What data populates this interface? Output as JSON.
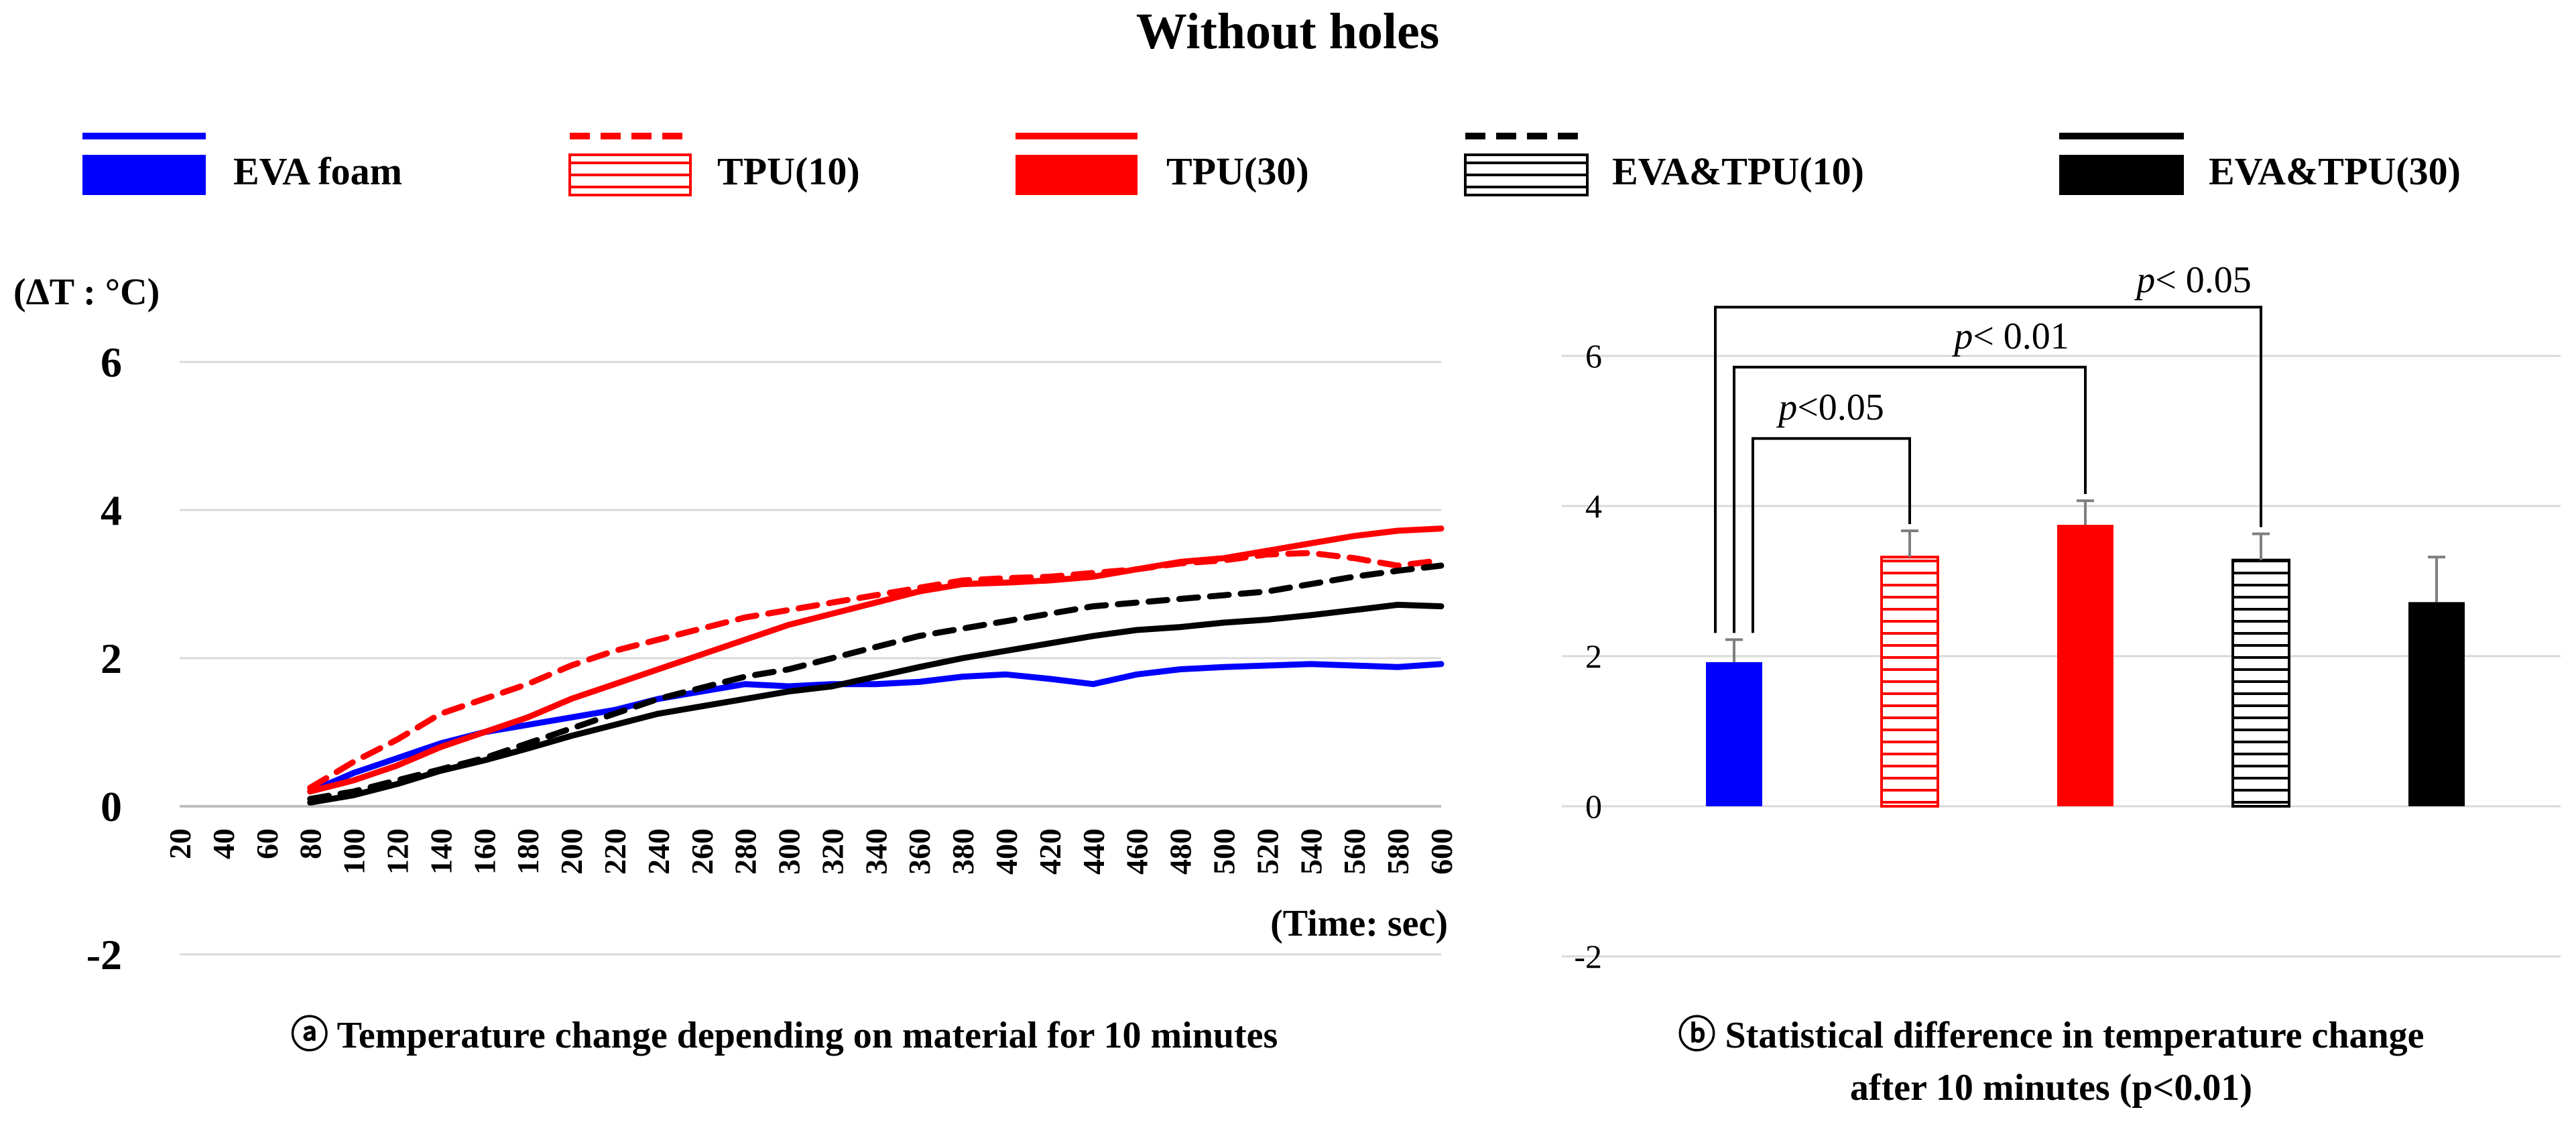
{
  "title": "Without holes",
  "legend": [
    {
      "name": "EVA foam",
      "color": "#0000ff",
      "line_style": "solid",
      "bar_fill": "solid"
    },
    {
      "name": "TPU(10)",
      "color": "#ff0000",
      "line_style": "dashed",
      "bar_fill": "striped"
    },
    {
      "name": "TPU(30)",
      "color": "#ff0000",
      "line_style": "solid",
      "bar_fill": "solid"
    },
    {
      "name": "EVA&TPU(10)",
      "color": "#000000",
      "line_style": "dashed",
      "bar_fill": "striped"
    },
    {
      "name": "EVA&TPU(30)",
      "color": "#000000",
      "line_style": "solid",
      "bar_fill": "solid"
    }
  ],
  "chart_data": [
    {
      "type": "line",
      "title": "ⓐ Temperature change depending on material for 10 minutes",
      "ylabel": "(ΔT : °C)",
      "xlabel": "(Time: sec)",
      "ylim": [
        -2,
        6
      ],
      "yticks": [
        6,
        4,
        2,
        0,
        -2
      ],
      "x": [
        20,
        40,
        60,
        80,
        100,
        120,
        140,
        160,
        180,
        200,
        220,
        240,
        260,
        280,
        300,
        320,
        340,
        360,
        380,
        400,
        420,
        440,
        460,
        480,
        500,
        520,
        540,
        560,
        580,
        600
      ],
      "grid": true,
      "series": [
        {
          "name": "EVA foam",
          "values": [
            null,
            null,
            null,
            0.2,
            0.45,
            0.65,
            0.85,
            1.0,
            1.1,
            1.2,
            1.3,
            1.45,
            1.55,
            1.65,
            1.62,
            1.65,
            1.65,
            1.68,
            1.75,
            1.78,
            1.72,
            1.65,
            1.78,
            1.85,
            1.88,
            1.9,
            1.92,
            1.9,
            1.88,
            1.92
          ]
        },
        {
          "name": "TPU(10)",
          "values": [
            null,
            null,
            null,
            0.25,
            0.6,
            0.9,
            1.25,
            1.45,
            1.65,
            1.9,
            2.1,
            2.25,
            2.4,
            2.55,
            2.65,
            2.75,
            2.85,
            2.95,
            3.05,
            3.08,
            3.1,
            3.15,
            3.2,
            3.28,
            3.32,
            3.4,
            3.42,
            3.35,
            3.25,
            3.32
          ]
        },
        {
          "name": "TPU(30)",
          "values": [
            null,
            null,
            null,
            0.2,
            0.35,
            0.55,
            0.8,
            1.0,
            1.2,
            1.45,
            1.65,
            1.85,
            2.05,
            2.25,
            2.45,
            2.6,
            2.75,
            2.9,
            3.0,
            3.02,
            3.05,
            3.1,
            3.2,
            3.3,
            3.35,
            3.45,
            3.55,
            3.65,
            3.72,
            3.75
          ]
        },
        {
          "name": "EVA&TPU(10)",
          "values": [
            null,
            null,
            null,
            0.1,
            0.2,
            0.35,
            0.5,
            0.65,
            0.85,
            1.05,
            1.25,
            1.45,
            1.6,
            1.75,
            1.85,
            2.0,
            2.15,
            2.3,
            2.4,
            2.5,
            2.6,
            2.7,
            2.75,
            2.8,
            2.85,
            2.9,
            3.0,
            3.1,
            3.18,
            3.25
          ]
        },
        {
          "name": "EVA&TPU(30)",
          "values": [
            null,
            null,
            null,
            0.05,
            0.15,
            0.3,
            0.48,
            0.62,
            0.78,
            0.95,
            1.1,
            1.25,
            1.35,
            1.45,
            1.55,
            1.62,
            1.75,
            1.88,
            2.0,
            2.1,
            2.2,
            2.3,
            2.38,
            2.42,
            2.48,
            2.52,
            2.58,
            2.65,
            2.72,
            2.7
          ]
        }
      ]
    },
    {
      "type": "bar",
      "title": "ⓑ Statistical difference in temperature change after 10 minutes (p<0.01)",
      "title_lines": [
        "ⓑ Statistical difference in temperature change",
        "after 10 minutes (p<0.01)"
      ],
      "ylim": [
        -2,
        6
      ],
      "yticks": [
        6,
        4,
        2,
        0,
        -2
      ],
      "categories": [
        "EVA foam",
        "TPU(10)",
        "TPU(30)",
        "EVA&TPU(10)",
        "EVA&TPU(30)"
      ],
      "values": [
        1.92,
        3.32,
        3.75,
        3.28,
        2.72
      ],
      "errors": [
        0.3,
        0.35,
        0.32,
        0.35,
        0.6
      ],
      "annotations": [
        {
          "label": "p<0.05",
          "from": "EVA foam",
          "to": "TPU(10)",
          "level": 4.9
        },
        {
          "label": "p< 0.01",
          "from": "EVA foam",
          "to": "TPU(30)",
          "level": 5.85
        },
        {
          "label": "p< 0.05",
          "from": "EVA foam",
          "to": "EVA&TPU(10)",
          "level": 6.65
        }
      ]
    }
  ]
}
